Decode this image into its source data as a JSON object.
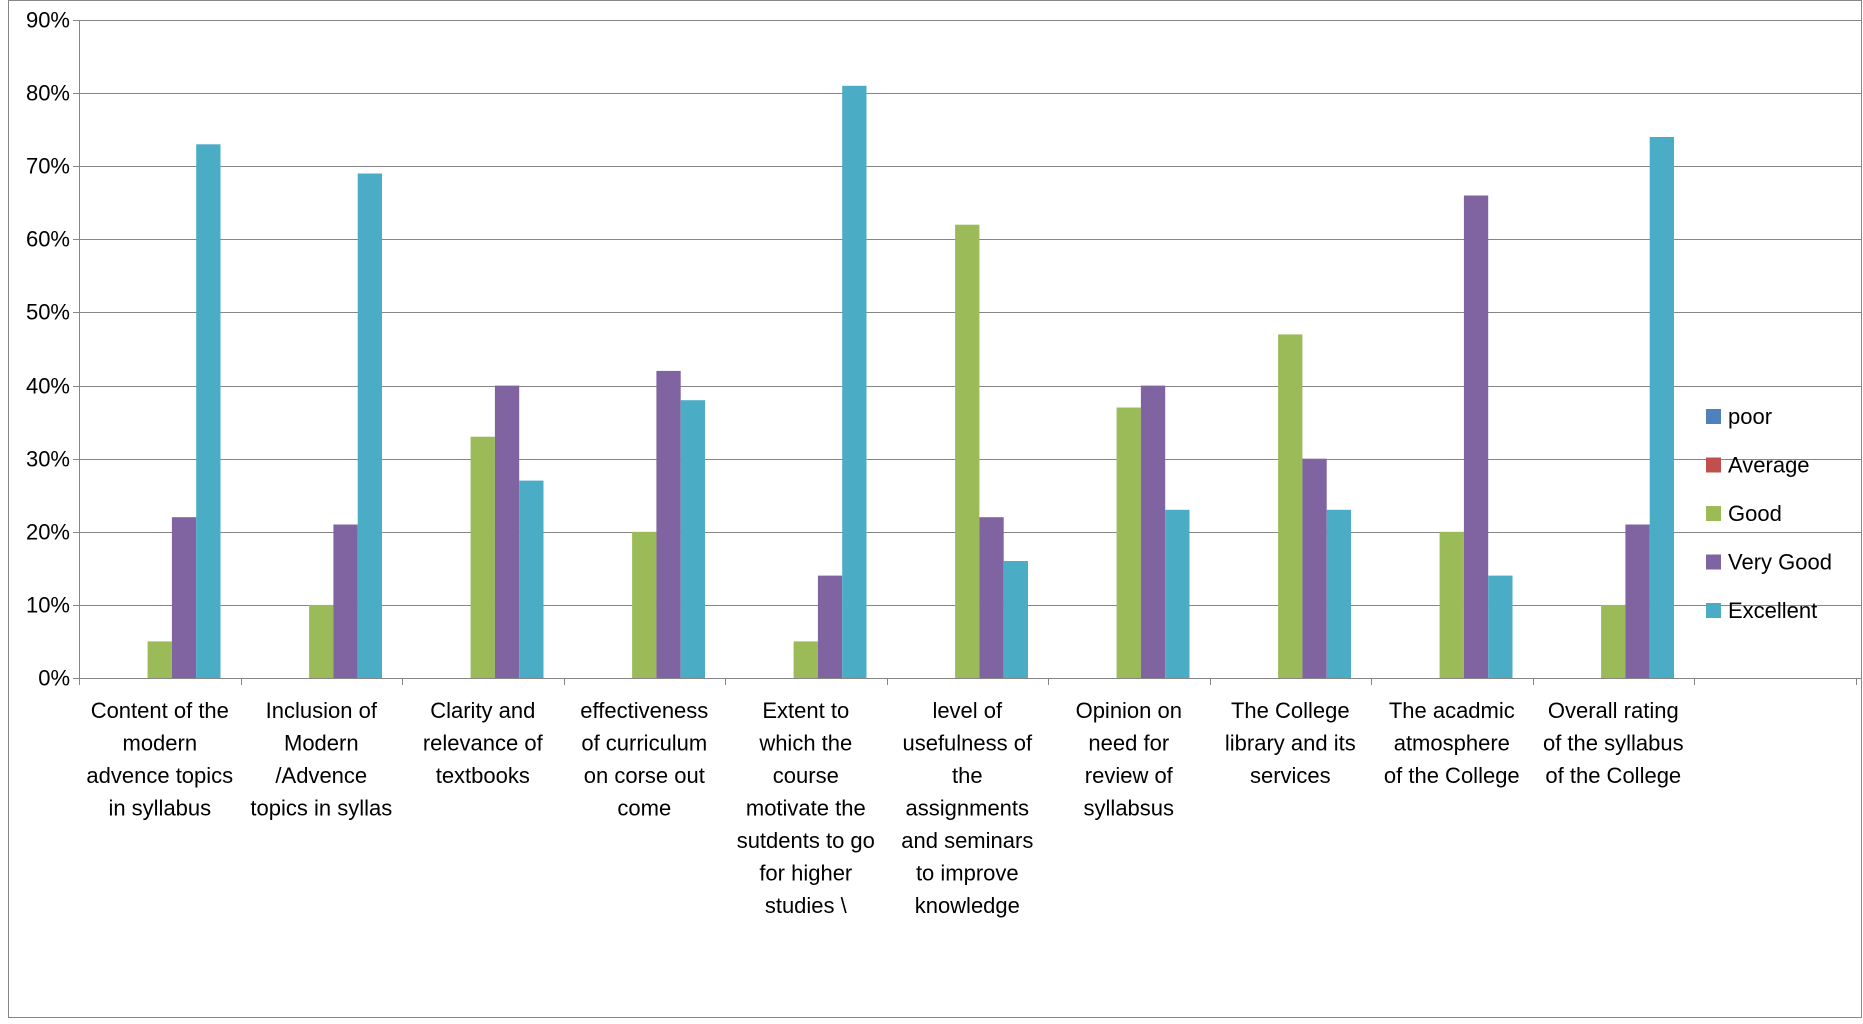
{
  "chart_data": {
    "type": "bar",
    "title": "",
    "xlabel": "",
    "ylabel": "",
    "ylim": [
      0,
      0.9
    ],
    "y_ticks": [
      "0%",
      "10%",
      "20%",
      "30%",
      "40%",
      "50%",
      "60%",
      "70%",
      "80%",
      "90%"
    ],
    "grid": true,
    "legend_position": "right",
    "categories": [
      "Content of the modern advence topics in syllabus",
      "Inclusion of Modern /Advence topics in syllas",
      "Clarity and relevance of textbooks",
      "effectiveness of curriculum on corse  out come",
      "Extent to which the course motivate the sutdents to go for higher studies \\",
      "level of usefulness of the assignments and seminars to improve knowledge",
      "Opinion on need for review of syllabsus",
      "The College library and its services",
      "The acadmic atmosphere of the College",
      "Overall rating of the syllabus of the College"
    ],
    "category_lines": [
      [
        "Content of the",
        "modern",
        "advence topics",
        "in syllabus"
      ],
      [
        "Inclusion of",
        "Modern",
        "/Advence",
        "topics in syllas"
      ],
      [
        "Clarity and",
        "relevance of",
        "textbooks"
      ],
      [
        "effectiveness",
        "of curriculum",
        "on corse  out",
        "come"
      ],
      [
        "Extent to",
        "which the",
        "course",
        "motivate the",
        "sutdents to go",
        "for higher",
        "studies \\"
      ],
      [
        "level of",
        "usefulness of",
        "the",
        "assignments",
        "and seminars",
        "to improve",
        "knowledge"
      ],
      [
        "Opinion on",
        "need for",
        "review of",
        "syllabsus"
      ],
      [
        "The College",
        "library and its",
        "services"
      ],
      [
        "The acadmic",
        "atmosphere",
        "of the College"
      ],
      [
        "Overall rating",
        "of the syllabus",
        "of the College"
      ]
    ],
    "series": [
      {
        "name": "poor",
        "color": "#4F81BD",
        "values": [
          0,
          0,
          0,
          0,
          0,
          0,
          0,
          0,
          0,
          0
        ]
      },
      {
        "name": "Average",
        "color": "#C0504D",
        "values": [
          0,
          0,
          0,
          0,
          0,
          0,
          0,
          0,
          0,
          0
        ]
      },
      {
        "name": "Good",
        "color": "#9BBB59",
        "values": [
          0.05,
          0.1,
          0.33,
          0.2,
          0.05,
          0.62,
          0.37,
          0.47,
          0.2,
          0.1
        ]
      },
      {
        "name": "Very Good",
        "color": "#8064A2",
        "values": [
          0.22,
          0.21,
          0.4,
          0.42,
          0.14,
          0.22,
          0.4,
          0.3,
          0.66,
          0.21
        ]
      },
      {
        "name": "Excellent",
        "color": "#4BACC6",
        "values": [
          0.73,
          0.69,
          0.27,
          0.38,
          0.81,
          0.16,
          0.23,
          0.23,
          0.14,
          0.74
        ]
      }
    ]
  }
}
